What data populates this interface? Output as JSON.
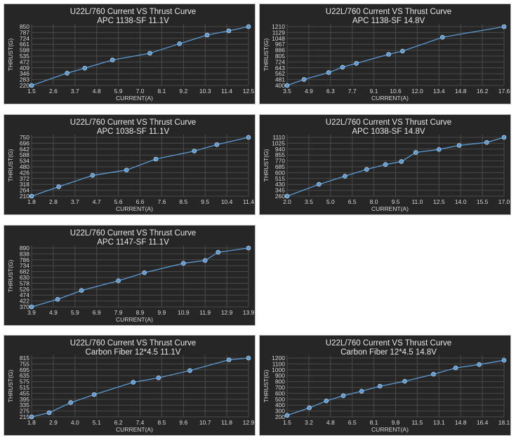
{
  "style": {
    "panel_bg": "#262626",
    "grid": "#4a4a4a",
    "line": "#5b9bd5",
    "marker": "#5b9bd5",
    "text": "#d9d9d9"
  },
  "chart_data": [
    {
      "type": "line",
      "title": "U22L/760 Current VS Thrust Curve",
      "subtitle": "APC 1138-SF  11.1V",
      "xlabel": "CURRENT(A)",
      "ylabel": "THRUST(G)",
      "x_ticks": [
        "1.5",
        "2.6",
        "3.7",
        "4.8",
        "5.9",
        "7.0",
        "8.1",
        "9.2",
        "10.3",
        "11.4",
        "12.5"
      ],
      "y_ticks": [
        "220",
        "283",
        "346",
        "409",
        "472",
        "535",
        "598",
        "661",
        "724",
        "787",
        "850"
      ],
      "xlim": [
        1.5,
        12.5
      ],
      "ylim": [
        220,
        850
      ],
      "grid": true,
      "x": [
        1.5,
        3.3,
        4.2,
        5.6,
        7.5,
        9.0,
        10.4,
        11.5,
        12.5
      ],
      "y": [
        220,
        352,
        405,
        493,
        565,
        667,
        760,
        805,
        850
      ]
    },
    {
      "type": "line",
      "title": "U22L/760 Current VS Thrust Curve",
      "subtitle": "APC 1138-SF  14.8V",
      "xlabel": "CURRENT(A)",
      "ylabel": "THRUST(G)",
      "x_ticks": [
        "3.5",
        "4.9",
        "6.3",
        "7.7",
        "9.1",
        "10.6",
        "12.0",
        "13.4",
        "14.8",
        "16.2",
        "17.6"
      ],
      "y_ticks": [
        "400",
        "481",
        "562",
        "643",
        "724",
        "805",
        "886",
        "967",
        "1048",
        "1129",
        "1210"
      ],
      "xlim": [
        3.5,
        17.6
      ],
      "ylim": [
        400,
        1210
      ],
      "grid": true,
      "x": [
        3.5,
        4.6,
        6.2,
        7.1,
        8.0,
        10.1,
        11.0,
        13.6,
        17.6
      ],
      "y": [
        400,
        483,
        577,
        652,
        705,
        829,
        873,
        1063,
        1210
      ]
    },
    {
      "type": "line",
      "title": "U22L/760 Current VS Thrust Curve",
      "subtitle": "APC 1038-SF  11.1V",
      "xlabel": "CURRENT(A)",
      "ylabel": "THRUST(G)",
      "x_ticks": [
        "1.8",
        "2.8",
        "3.7",
        "4.7",
        "5.6",
        "6.6",
        "7.6",
        "8.5",
        "9.5",
        "10.4",
        "11.4"
      ],
      "y_ticks": [
        "210",
        "264",
        "318",
        "372",
        "426",
        "480",
        "534",
        "588",
        "642",
        "696",
        "750"
      ],
      "xlim": [
        1.8,
        11.4
      ],
      "ylim": [
        210,
        750
      ],
      "grid": true,
      "x": [
        1.8,
        3.0,
        4.5,
        6.0,
        7.3,
        9.0,
        10.0,
        11.4
      ],
      "y": [
        210,
        297,
        401,
        450,
        551,
        624,
        683,
        750
      ]
    },
    {
      "type": "line",
      "title": "U22L/760 Current VS Thrust Curve",
      "subtitle": "APC 1038-SF  14.8V",
      "xlabel": "CURRENT(A)",
      "ylabel": "THRUST(G)",
      "x_ticks": [
        "2.0",
        "3.5",
        "5.0",
        "6.5",
        "8.0",
        "9.5",
        "11.0",
        "12.5",
        "14.0",
        "15.5",
        "17.0"
      ],
      "y_ticks": [
        "260",
        "345",
        "430",
        "515",
        "600",
        "685",
        "770",
        "855",
        "940",
        "1025",
        "1110"
      ],
      "xlim": [
        2.0,
        17.0
      ],
      "ylim": [
        260,
        1110
      ],
      "grid": true,
      "x": [
        2.0,
        4.2,
        6.0,
        7.5,
        8.8,
        9.9,
        10.9,
        12.5,
        13.9,
        15.8,
        17.0
      ],
      "y": [
        260,
        431,
        549,
        647,
        717,
        760,
        891,
        935,
        994,
        1036,
        1110
      ]
    },
    {
      "type": "line",
      "title": "U22L/760 Current VS Thrust Curve",
      "subtitle": "APC 1147-SF  11.1V",
      "xlabel": "CURRENT(A)",
      "ylabel": "THRUST(G)",
      "x_ticks": [
        "3.9",
        "4.9",
        "5.9",
        "6.9",
        "7.9",
        "8.9",
        "9.9",
        "10.9",
        "11.9",
        "12.9",
        "13.9"
      ],
      "y_ticks": [
        "370",
        "422",
        "474",
        "526",
        "578",
        "630",
        "682",
        "734",
        "786",
        "838",
        "890"
      ],
      "xlim": [
        3.9,
        13.9
      ],
      "ylim": [
        370,
        890
      ],
      "grid": true,
      "x": [
        3.9,
        5.1,
        6.2,
        7.9,
        9.1,
        10.9,
        11.9,
        12.5,
        13.9
      ],
      "y": [
        370,
        437,
        515,
        601,
        672,
        755,
        780,
        852,
        890
      ]
    },
    {
      "type": "line",
      "title": "U22L/760 Current VS Thrust Curve",
      "subtitle": "Carbon Fiber 12*4.5 11.1V",
      "xlabel": "CURRENT(A)",
      "ylabel": "THRUST(G)",
      "x_ticks": [
        "1.8",
        "2.9",
        "4.0",
        "5.1",
        "6.2",
        "7.4",
        "8.5",
        "9.6",
        "10.7",
        "11.8",
        "12.9"
      ],
      "y_ticks": [
        "215",
        "275",
        "335",
        "395",
        "455",
        "515",
        "575",
        "635",
        "695",
        "755",
        "815"
      ],
      "xlim": [
        1.8,
        12.9
      ],
      "ylim": [
        215,
        815
      ],
      "grid": true,
      "x": [
        1.8,
        2.7,
        3.8,
        5.0,
        7.0,
        8.3,
        9.9,
        11.9,
        12.9
      ],
      "y": [
        215,
        258,
        361,
        442,
        568,
        613,
        687,
        797,
        815
      ]
    },
    {
      "type": "line",
      "title": "U22L/760 Current VS Thrust Curve",
      "subtitle": "Carbon Fiber 12*4.5 14.8V",
      "xlabel": "CURRENT(A)",
      "ylabel": "THRUST(G)",
      "x_ticks": [
        "1.5",
        "3.2",
        "4.8",
        "6.5",
        "8.1",
        "9.8",
        "11.5",
        "13.1",
        "14.8",
        "16.4",
        "18.1"
      ],
      "y_ticks": [
        "200",
        "300",
        "400",
        "500",
        "600",
        "700",
        "800",
        "900",
        "1000",
        "1100",
        "1200"
      ],
      "xlim": [
        1.5,
        18.1
      ],
      "ylim": [
        200,
        1200
      ],
      "grid": true,
      "x": [
        1.5,
        3.2,
        4.5,
        5.8,
        7.2,
        8.6,
        10.5,
        12.7,
        14.4,
        16.2,
        18.1
      ],
      "y": [
        225,
        354,
        472,
        559,
        636,
        722,
        805,
        925,
        1032,
        1089,
        1162
      ]
    }
  ]
}
